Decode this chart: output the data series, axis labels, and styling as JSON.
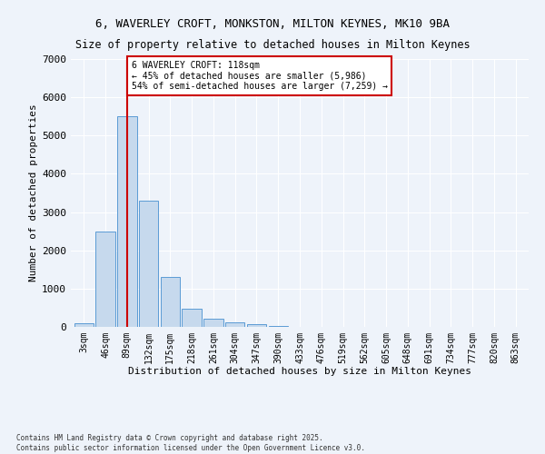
{
  "title_line1": "6, WAVERLEY CROFT, MONKSTON, MILTON KEYNES, MK10 9BA",
  "title_line2": "Size of property relative to detached houses in Milton Keynes",
  "xlabel": "Distribution of detached houses by size in Milton Keynes",
  "ylabel": "Number of detached properties",
  "bar_color": "#c6d9ed",
  "bar_edge_color": "#5b9bd5",
  "categories": [
    "3sqm",
    "46sqm",
    "89sqm",
    "132sqm",
    "175sqm",
    "218sqm",
    "261sqm",
    "304sqm",
    "347sqm",
    "390sqm",
    "433sqm",
    "476sqm",
    "519sqm",
    "562sqm",
    "605sqm",
    "648sqm",
    "691sqm",
    "734sqm",
    "777sqm",
    "820sqm",
    "863sqm"
  ],
  "values": [
    100,
    2500,
    5500,
    3300,
    1300,
    480,
    220,
    110,
    70,
    30,
    0,
    0,
    0,
    0,
    0,
    0,
    0,
    0,
    0,
    0,
    0
  ],
  "ylim": [
    0,
    7000
  ],
  "yticks": [
    0,
    1000,
    2000,
    3000,
    4000,
    5000,
    6000,
    7000
  ],
  "annotation_title": "6 WAVERLEY CROFT: 118sqm",
  "annotation_line2": "← 45% of detached houses are smaller (5,986)",
  "annotation_line3": "54% of semi-detached houses are larger (7,259) →",
  "annotation_box_color": "#ffffff",
  "annotation_box_edge": "#cc0000",
  "vline_color": "#cc0000",
  "background_color": "#eef3fa",
  "grid_color": "#ffffff",
  "footer": "Contains HM Land Registry data © Crown copyright and database right 2025.\nContains public sector information licensed under the Open Government Licence v3.0."
}
